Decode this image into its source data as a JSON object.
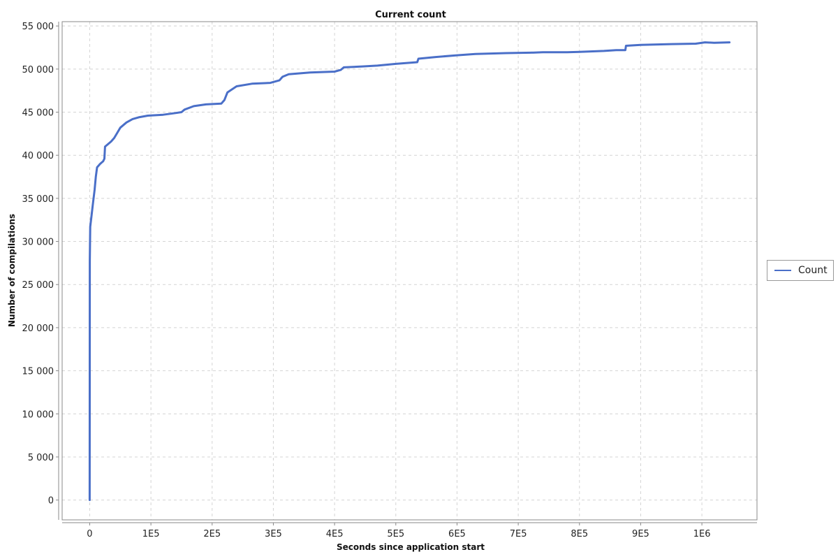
{
  "chart_data": {
    "type": "line",
    "title": "Current count",
    "xlabel": "Seconds since application start",
    "ylabel": "Number of compilations",
    "xlim": [
      -45000,
      1090000
    ],
    "ylim": [
      -2300,
      55500
    ],
    "x_ticks": [
      {
        "value": 0,
        "label": "0"
      },
      {
        "value": 100000,
        "label": "1E5"
      },
      {
        "value": 200000,
        "label": "2E5"
      },
      {
        "value": 300000,
        "label": "3E5"
      },
      {
        "value": 400000,
        "label": "4E5"
      },
      {
        "value": 500000,
        "label": "5E5"
      },
      {
        "value": 600000,
        "label": "6E5"
      },
      {
        "value": 700000,
        "label": "7E5"
      },
      {
        "value": 800000,
        "label": "8E5"
      },
      {
        "value": 900000,
        "label": "9E5"
      },
      {
        "value": 1000000,
        "label": "1E6"
      }
    ],
    "y_ticks": [
      {
        "value": 0,
        "label": "0"
      },
      {
        "value": 5000,
        "label": "5 000"
      },
      {
        "value": 10000,
        "label": "10 000"
      },
      {
        "value": 15000,
        "label": "15 000"
      },
      {
        "value": 20000,
        "label": "20 000"
      },
      {
        "value": 25000,
        "label": "25 000"
      },
      {
        "value": 30000,
        "label": "30 000"
      },
      {
        "value": 35000,
        "label": "35 000"
      },
      {
        "value": 40000,
        "label": "40 000"
      },
      {
        "value": 45000,
        "label": "45 000"
      },
      {
        "value": 50000,
        "label": "50 000"
      },
      {
        "value": 55000,
        "label": "55 000"
      }
    ],
    "grid": true,
    "legend_position": "right",
    "series": [
      {
        "name": "Count",
        "color": "#4a6fc8",
        "points": [
          [
            0,
            0
          ],
          [
            200,
            27800
          ],
          [
            800,
            31700
          ],
          [
            3000,
            33000
          ],
          [
            5000,
            34200
          ],
          [
            8000,
            36000
          ],
          [
            10000,
            37500
          ],
          [
            12000,
            38600
          ],
          [
            17000,
            39000
          ],
          [
            22000,
            39300
          ],
          [
            24000,
            39600
          ],
          [
            25000,
            41000
          ],
          [
            30000,
            41300
          ],
          [
            35000,
            41600
          ],
          [
            40000,
            42000
          ],
          [
            45000,
            42600
          ],
          [
            50000,
            43200
          ],
          [
            60000,
            43800
          ],
          [
            70000,
            44200
          ],
          [
            80000,
            44400
          ],
          [
            95000,
            44600
          ],
          [
            120000,
            44700
          ],
          [
            140000,
            44900
          ],
          [
            150000,
            45000
          ],
          [
            155000,
            45300
          ],
          [
            170000,
            45700
          ],
          [
            190000,
            45900
          ],
          [
            215000,
            46000
          ],
          [
            220000,
            46400
          ],
          [
            225000,
            47300
          ],
          [
            240000,
            48000
          ],
          [
            265000,
            48300
          ],
          [
            295000,
            48400
          ],
          [
            310000,
            48700
          ],
          [
            315000,
            49100
          ],
          [
            325000,
            49400
          ],
          [
            360000,
            49600
          ],
          [
            400000,
            49700
          ],
          [
            410000,
            49900
          ],
          [
            415000,
            50200
          ],
          [
            445000,
            50300
          ],
          [
            470000,
            50400
          ],
          [
            500000,
            50600
          ],
          [
            535000,
            50800
          ],
          [
            537000,
            51200
          ],
          [
            565000,
            51400
          ],
          [
            600000,
            51600
          ],
          [
            630000,
            51750
          ],
          [
            680000,
            51850
          ],
          [
            720000,
            51900
          ],
          [
            740000,
            51950
          ],
          [
            780000,
            51950
          ],
          [
            800000,
            52000
          ],
          [
            840000,
            52100
          ],
          [
            860000,
            52200
          ],
          [
            875000,
            52200
          ],
          [
            876000,
            52700
          ],
          [
            900000,
            52800
          ],
          [
            950000,
            52900
          ],
          [
            990000,
            52950
          ],
          [
            1005000,
            53100
          ],
          [
            1020000,
            53050
          ],
          [
            1045000,
            53100
          ]
        ]
      }
    ]
  }
}
